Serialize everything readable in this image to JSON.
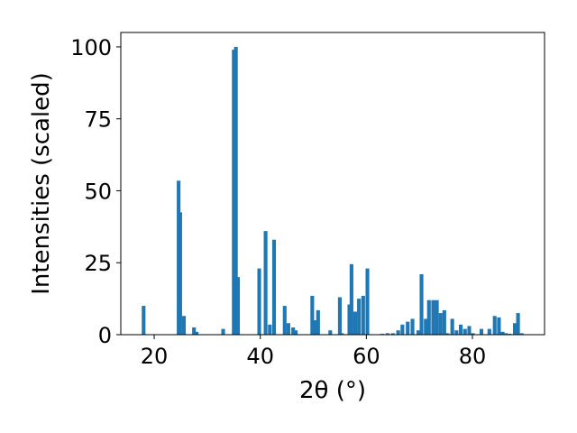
{
  "chart_data": {
    "type": "bar",
    "title": "",
    "xlabel": "2θ (°)",
    "ylabel": "Intensities (scaled)",
    "xlim": [
      13.7,
      93.6
    ],
    "ylim": [
      0,
      105
    ],
    "xticks": [
      20,
      40,
      60,
      80
    ],
    "yticks": [
      0,
      25,
      50,
      75,
      100
    ],
    "grid": false,
    "bar_color": "#1f77b4",
    "bar_width": 0.7,
    "x": [
      18.0,
      24.6,
      24.9,
      25.6,
      27.5,
      28.0,
      33.0,
      35.0,
      35.4,
      35.8,
      39.8,
      41.0,
      41.8,
      42.6,
      44.6,
      45.3,
      46.2,
      46.7,
      49.8,
      50.3,
      50.9,
      53.2,
      55.0,
      55.4,
      56.8,
      57.2,
      57.9,
      58.6,
      59.4,
      60.2,
      63.0,
      64.0,
      65.0,
      66.0,
      66.8,
      67.8,
      68.7,
      69.8,
      70.4,
      71.2,
      71.8,
      72.6,
      73.3,
      74.0,
      74.7,
      75.3,
      76.2,
      77.0,
      77.8,
      78.6,
      79.4,
      80.1,
      81.7,
      83.2,
      84.2,
      85.0,
      85.7,
      86.3,
      87.0,
      88.0,
      88.6,
      89.3
    ],
    "values": [
      10.0,
      53.5,
      42.5,
      6.5,
      2.5,
      1.0,
      2.0,
      99.0,
      100.0,
      20.0,
      23.0,
      36.0,
      3.5,
      33.0,
      10.0,
      4.0,
      2.5,
      1.5,
      13.5,
      5.0,
      8.5,
      1.5,
      13.0,
      0.5,
      10.5,
      24.5,
      8.0,
      12.5,
      13.5,
      23.0,
      0.3,
      0.5,
      0.5,
      1.5,
      3.5,
      4.5,
      5.5,
      1.5,
      21.0,
      5.5,
      12.0,
      12.0,
      12.0,
      7.5,
      8.5,
      0.5,
      5.5,
      1.5,
      3.5,
      2.0,
      3.0,
      0.5,
      2.0,
      2.0,
      6.5,
      6.0,
      1.0,
      0.5,
      0.3,
      4.0,
      7.5,
      0.5
    ]
  }
}
